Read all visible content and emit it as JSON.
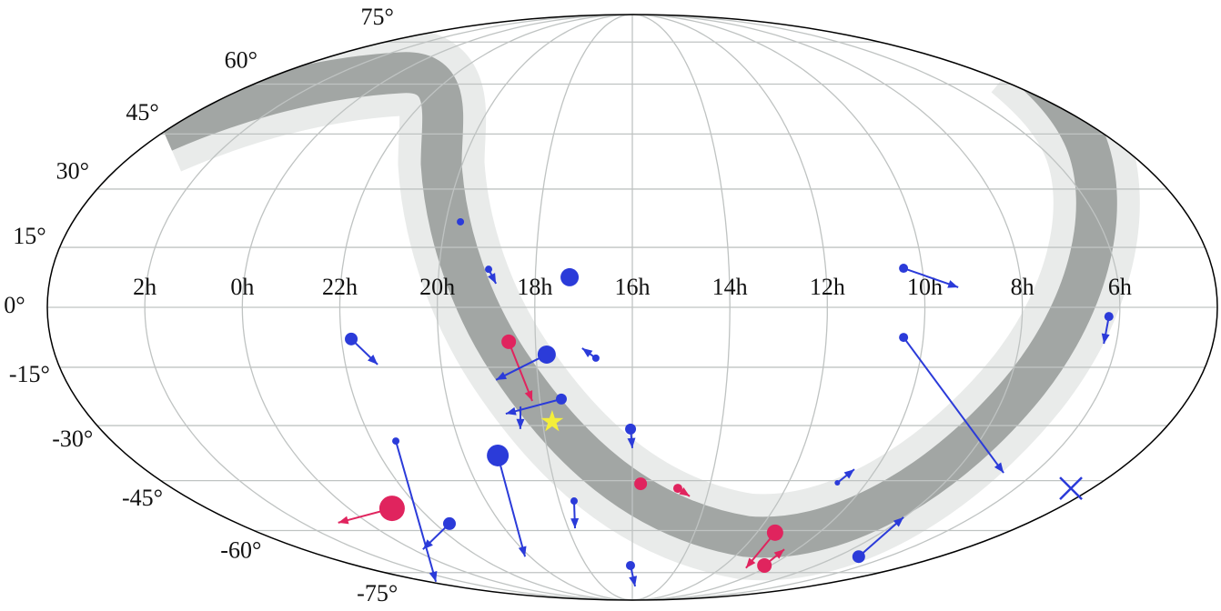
{
  "chart_data": {
    "type": "mollweide",
    "xlim": [
      420,
      60
    ],
    "ylim": [
      -90,
      90
    ],
    "xticks": [
      {
        "value": 30,
        "label": "2h"
      },
      {
        "value": 0,
        "label": "0h"
      },
      {
        "value": 330,
        "label": "22h"
      },
      {
        "value": 300,
        "label": "20h"
      },
      {
        "value": 270,
        "label": "18h"
      },
      {
        "value": 240,
        "label": "16h"
      },
      {
        "value": 210,
        "label": "14h"
      },
      {
        "value": 180,
        "label": "12h"
      },
      {
        "value": 150,
        "label": "10h"
      },
      {
        "value": 120,
        "label": "8h"
      },
      {
        "value": 90,
        "label": "6h"
      }
    ],
    "yticks": [
      {
        "value": 75,
        "label": "75°"
      },
      {
        "value": 60,
        "label": "60°"
      },
      {
        "value": 45,
        "label": "45°"
      },
      {
        "value": 30,
        "label": "30°"
      },
      {
        "value": 15,
        "label": "15°"
      },
      {
        "value": 0,
        "label": "0°"
      },
      {
        "value": -15,
        "label": "-15°"
      },
      {
        "value": -30,
        "label": "-30°"
      },
      {
        "value": -45,
        "label": "-45°"
      },
      {
        "value": -60,
        "label": "-60°"
      },
      {
        "value": -75,
        "label": "-75°"
      }
    ],
    "grid": true,
    "sources": [
      {
        "ra": 295.3,
        "dec": 21.5,
        "size": 4,
        "color": "#2b3bd9"
      },
      {
        "ra": 284.6,
        "dec": 9.5,
        "size": 4,
        "color": "#2b3bd9",
        "end_ra": 282.1,
        "end_dec": 5.9
      },
      {
        "ra": 259.4,
        "dec": 7.5,
        "size": 10,
        "color": "#2b3bd9"
      },
      {
        "ra": 155.8,
        "dec": 9.75,
        "size": 5,
        "color": "#2b3bd9",
        "end_ra": 139.5,
        "end_dec": 5.0
      },
      {
        "ra": 93.3,
        "dec": -2.3,
        "size": 5,
        "color": "#2b3bd9",
        "end_ra": 93.8,
        "end_dec": -9.1
      },
      {
        "ra": 327.0,
        "dec": -7.9,
        "size": 7,
        "color": "#2b3bd9",
        "end_ra": 319.9,
        "end_dec": -14.3
      },
      {
        "ra": 278.3,
        "dec": -8.6,
        "size": 8,
        "color": "#e0245e",
        "end_ra": 272.5,
        "end_dec": -23.6
      },
      {
        "ra": 266.7,
        "dec": -11.8,
        "size": 10,
        "color": "#2b3bd9",
        "end_ra": 283.3,
        "end_dec": -18.2
      },
      {
        "ra": 251.4,
        "dec": -12.7,
        "size": 4,
        "color": "#2b3bd9",
        "end_ra": 255.6,
        "end_dec": -10.2
      },
      {
        "ra": 156.1,
        "dec": -7.5,
        "size": 5,
        "color": "#2b3bd9",
        "end_ra": 101.5,
        "end_dec": -42.8
      },
      {
        "ra": 263.0,
        "dec": -23.1,
        "size": 6,
        "color": "#2b3bd9",
        "end_ra": 281.8,
        "end_dec": -26.9
      },
      {
        "ra": 276.6,
        "dec": -25.2,
        "size": 1,
        "color": "#2b3bd9",
        "end_ra": 277.9,
        "end_dec": -30.9
      },
      {
        "ra": 240.6,
        "dec": -30.9,
        "size": 6,
        "color": "#2b3bd9",
        "end_ra": 240.0,
        "end_dec": -36.0
      },
      {
        "ra": 321.8,
        "dec": -34.1,
        "size": 4,
        "color": "#2b3bd9",
        "end_ra": 53.3,
        "end_dec": -78.9
      },
      {
        "ra": 288.0,
        "dec": -38.0,
        "size": 12,
        "color": "#2b3bd9",
        "end_ra": 303.0,
        "end_dec": -68.9
      },
      {
        "ra": 236.8,
        "dec": -45.9,
        "size": 7,
        "color": "#e0245e"
      },
      {
        "ra": 222.2,
        "dec": -47.2,
        "size": 5,
        "color": "#e0245e",
        "end_ra": 216.9,
        "end_dec": -49.5
      },
      {
        "ra": 161.2,
        "dec": -45.6,
        "size": 3,
        "color": "#2b3bd9",
        "end_ra": 158.0,
        "end_dec": -41.8
      },
      {
        "ra": 263.9,
        "dec": -50.9,
        "size": 4,
        "color": "#2b3bd9",
        "end_ra": 266.9,
        "end_dec": -59.3
      },
      {
        "ra": 341.7,
        "dec": -53.1,
        "size": 14,
        "color": "#e0245e",
        "end_ra": 13.6,
        "end_dec": -57.5
      },
      {
        "ra": 323.5,
        "dec": -57.8,
        "size": 7,
        "color": "#2b3bd9",
        "end_ra": 354.5,
        "end_dec": -66.3
      },
      {
        "ra": 171.2,
        "dec": -60.7,
        "size": 9,
        "color": "#e0245e",
        "end_ra": 163.1,
        "end_dec": -73.2
      },
      {
        "ra": 153.8,
        "dec": -72.2,
        "size": 8,
        "color": "#e0245e",
        "end_ra": 156.9,
        "end_dec": -66.3
      },
      {
        "ra": 107.1,
        "dec": -68.9,
        "size": 7,
        "color": "#2b3bd9",
        "end_ra": 120.3,
        "end_dec": -55.8
      },
      {
        "ra": 241.2,
        "dec": -72.2,
        "size": 5,
        "color": "#2b3bd9",
        "end_ra": 237.2,
        "end_dec": -81.1
      }
    ],
    "markers": [
      {
        "ra": 266.8,
        "dec": -29.0,
        "shape": "star",
        "color": "#f4ee3a"
      },
      {
        "ra": 68.3,
        "dec": -47.2,
        "shape": "cross",
        "color": "#2b3bd9"
      }
    ]
  }
}
